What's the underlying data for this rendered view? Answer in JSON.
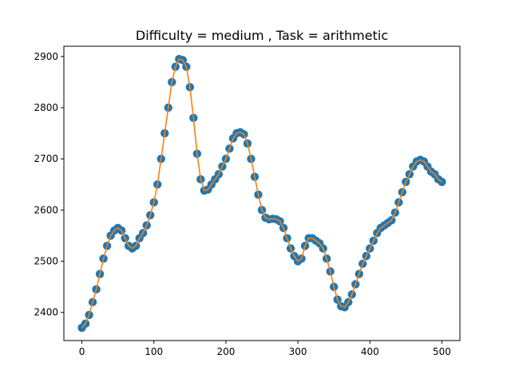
{
  "chart_data": {
    "type": "scatter",
    "title": "Difficulty = medium , Task = arithmetic",
    "xlabel": "",
    "ylabel": "",
    "xlim": [
      -25,
      525
    ],
    "ylim": [
      2345,
      2920
    ],
    "xticks": [
      0,
      100,
      200,
      300,
      400,
      500
    ],
    "yticks": [
      2400,
      2500,
      2600,
      2700,
      2800,
      2900
    ],
    "grid": false,
    "legend": "none",
    "colors": {
      "points": "#1f77b4",
      "line": "#ff7f0e"
    },
    "series": [
      {
        "kind": "scatter",
        "x": [
          0,
          5,
          10,
          15,
          20,
          25,
          30,
          35,
          40,
          45,
          50,
          55,
          60,
          65,
          70,
          75,
          80,
          85,
          90,
          95,
          100,
          105,
          110,
          115,
          120,
          125,
          130,
          135,
          140,
          145,
          150,
          155,
          160,
          165,
          170,
          175,
          180,
          185,
          190,
          195,
          200,
          205,
          210,
          215,
          220,
          225,
          230,
          235,
          240,
          245,
          250,
          255,
          260,
          265,
          270,
          275,
          280,
          285,
          290,
          295,
          300,
          305,
          310,
          315,
          320,
          325,
          330,
          335,
          340,
          345,
          350,
          355,
          360,
          365,
          370,
          375,
          380,
          385,
          390,
          395,
          400,
          405,
          410,
          415,
          420,
          425,
          430,
          435,
          440,
          445,
          450,
          455,
          460,
          465,
          470,
          475,
          480,
          485,
          490,
          495,
          500
        ],
        "values": [
          2370,
          2378,
          2395,
          2420,
          2445,
          2475,
          2505,
          2530,
          2550,
          2560,
          2565,
          2560,
          2545,
          2530,
          2525,
          2530,
          2545,
          2555,
          2570,
          2590,
          2615,
          2650,
          2700,
          2750,
          2800,
          2850,
          2880,
          2895,
          2893,
          2880,
          2840,
          2780,
          2710,
          2660,
          2638,
          2640,
          2650,
          2660,
          2670,
          2685,
          2700,
          2720,
          2740,
          2750,
          2752,
          2748,
          2730,
          2700,
          2665,
          2630,
          2600,
          2585,
          2582,
          2583,
          2582,
          2578,
          2565,
          2545,
          2525,
          2510,
          2500,
          2505,
          2530,
          2545,
          2545,
          2540,
          2535,
          2525,
          2505,
          2480,
          2450,
          2425,
          2412,
          2410,
          2420,
          2435,
          2455,
          2475,
          2495,
          2510,
          2525,
          2540,
          2555,
          2565,
          2570,
          2575,
          2580,
          2595,
          2615,
          2635,
          2655,
          2670,
          2685,
          2695,
          2698,
          2695,
          2685,
          2675,
          2670,
          2660,
          2655
        ]
      },
      {
        "kind": "line",
        "x": [
          0,
          5,
          10,
          15,
          20,
          25,
          30,
          35,
          40,
          45,
          50,
          55,
          60,
          65,
          70,
          75,
          80,
          85,
          90,
          95,
          100,
          105,
          110,
          115,
          120,
          125,
          130,
          135,
          140,
          145,
          150,
          155,
          160,
          165,
          170,
          175,
          180,
          185,
          190,
          195,
          200,
          205,
          210,
          215,
          220,
          225,
          230,
          235,
          240,
          245,
          250,
          255,
          260,
          265,
          270,
          275,
          280,
          285,
          290,
          295,
          300,
          305,
          310,
          315,
          320,
          325,
          330,
          335,
          340,
          345,
          350,
          355,
          360,
          365,
          370,
          375,
          380,
          385,
          390,
          395,
          400,
          405,
          410,
          415,
          420,
          425,
          430,
          435,
          440,
          445,
          450,
          455,
          460,
          465,
          470,
          475,
          480,
          485,
          490,
          495,
          500
        ],
        "values": [
          2370,
          2378,
          2395,
          2420,
          2445,
          2475,
          2505,
          2530,
          2550,
          2560,
          2565,
          2560,
          2545,
          2530,
          2525,
          2530,
          2545,
          2555,
          2570,
          2590,
          2615,
          2650,
          2700,
          2750,
          2800,
          2850,
          2880,
          2895,
          2893,
          2880,
          2840,
          2780,
          2710,
          2660,
          2638,
          2640,
          2650,
          2660,
          2670,
          2685,
          2700,
          2720,
          2740,
          2750,
          2752,
          2748,
          2730,
          2700,
          2665,
          2630,
          2600,
          2585,
          2582,
          2583,
          2582,
          2578,
          2565,
          2545,
          2525,
          2510,
          2500,
          2505,
          2530,
          2545,
          2545,
          2540,
          2535,
          2525,
          2505,
          2480,
          2450,
          2425,
          2412,
          2410,
          2420,
          2435,
          2455,
          2475,
          2495,
          2510,
          2525,
          2540,
          2555,
          2565,
          2570,
          2575,
          2580,
          2595,
          2615,
          2635,
          2655,
          2670,
          2685,
          2695,
          2698,
          2695,
          2685,
          2675,
          2670,
          2660,
          2655
        ]
      }
    ]
  }
}
